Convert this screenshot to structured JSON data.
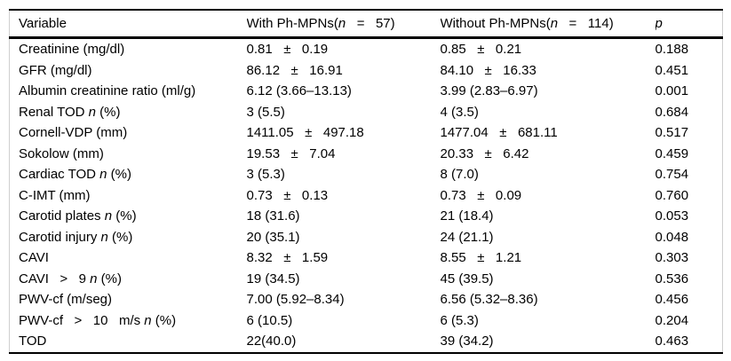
{
  "table": {
    "columns": [
      "Variable",
      "With Ph-MPNs(*n*   =   57)",
      "Without Ph-MPNs(*n*   =   114)",
      "*p*"
    ],
    "rows": [
      [
        "Creatinine (mg/dl)",
        "0.81   ±   0.19",
        "0.85   ±   0.21",
        "0.188"
      ],
      [
        "GFR (mg/dl)",
        "86.12   ±   16.91",
        "84.10   ±   16.33",
        "0.451"
      ],
      [
        "Albumin creatinine ratio (ml/g)",
        "6.12 (3.66–13.13)",
        "3.99 (2.83–6.97)",
        "0.001"
      ],
      [
        "Renal TOD *n* (%)",
        "3 (5.5)",
        "4 (3.5)",
        "0.684"
      ],
      [
        "Cornell-VDP (mm)",
        "1411.05   ±   497.18",
        "1477.04   ±   681.11",
        "0.517"
      ],
      [
        "Sokolow (mm)",
        "19.53   ±   7.04",
        "20.33   ±   6.42",
        "0.459"
      ],
      [
        "Cardiac TOD *n* (%)",
        "3 (5.3)",
        "8 (7.0)",
        "0.754"
      ],
      [
        "C-IMT (mm)",
        "0.73   ±   0.13",
        "0.73   ±   0.09",
        "0.760"
      ],
      [
        "Carotid plates *n* (%)",
        "18 (31.6)",
        "21 (18.4)",
        "0.053"
      ],
      [
        "Carotid injury *n* (%)",
        "20 (35.1)",
        "24 (21.1)",
        "0.048"
      ],
      [
        "CAVI",
        "8.32   ±   1.59",
        "8.55   ±   1.21",
        "0.303"
      ],
      [
        "CAVI   >   9 *n* (%)",
        "19 (34.5)",
        "45 (39.5)",
        "0.536"
      ],
      [
        "PWV-cf (m/seg)",
        "7.00 (5.92–8.34)",
        "6.56 (5.32–8.36)",
        "0.456"
      ],
      [
        "PWV-cf   >   10   m/s *n* (%)",
        "6 (10.5)",
        "6 (5.3)",
        "0.204"
      ],
      [
        "TOD",
        "22(40.0)",
        "39 (34.2)",
        "0.463"
      ]
    ]
  }
}
